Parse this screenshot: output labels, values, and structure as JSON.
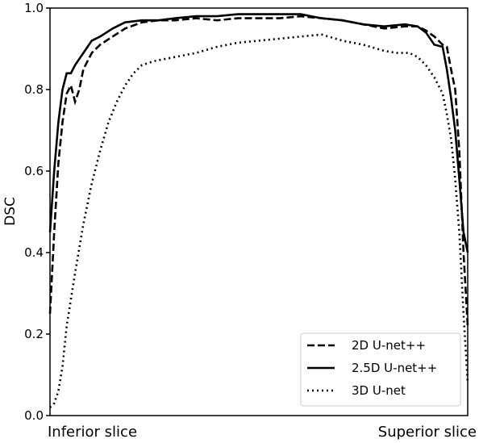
{
  "chart_data": {
    "type": "line",
    "title": "",
    "ylabel": "DSC",
    "xlabel": "",
    "x_end_labels": {
      "left": "Inferior slice",
      "right": "Superior slice"
    },
    "xlim": [
      0,
      100
    ],
    "ylim": [
      0,
      1.0
    ],
    "yticks": [
      0.0,
      0.2,
      0.4,
      0.6,
      0.8,
      1.0
    ],
    "ytick_labels": [
      "0.0",
      "0.2",
      "0.4",
      "0.6",
      "0.8",
      "1.0"
    ],
    "grid": false,
    "legend_position": "bottom-right",
    "series": [
      {
        "name": "2D U-net++",
        "style": "dashed",
        "color": "#000000",
        "x": [
          0,
          1,
          2,
          3,
          4,
          5,
          6,
          7,
          8,
          10,
          12,
          15,
          18,
          22,
          26,
          30,
          35,
          40,
          45,
          50,
          55,
          60,
          65,
          70,
          75,
          80,
          85,
          88,
          90,
          92,
          94,
          95,
          96,
          97,
          98,
          99,
          100
        ],
        "y": [
          0.25,
          0.45,
          0.62,
          0.72,
          0.79,
          0.81,
          0.77,
          0.8,
          0.85,
          0.89,
          0.91,
          0.93,
          0.95,
          0.965,
          0.97,
          0.97,
          0.975,
          0.97,
          0.975,
          0.975,
          0.975,
          0.98,
          0.975,
          0.97,
          0.96,
          0.95,
          0.955,
          0.955,
          0.945,
          0.93,
          0.91,
          0.905,
          0.85,
          0.8,
          0.65,
          0.4,
          0.22
        ]
      },
      {
        "name": "2.5D U-net++",
        "style": "solid",
        "color": "#000000",
        "x": [
          0,
          1,
          2,
          3,
          4,
          5,
          6,
          8,
          10,
          12,
          15,
          18,
          22,
          26,
          30,
          35,
          40,
          45,
          50,
          55,
          60,
          65,
          70,
          75,
          80,
          85,
          88,
          90,
          92,
          94,
          95,
          96,
          97,
          98,
          99,
          100
        ],
        "y": [
          0.45,
          0.6,
          0.72,
          0.8,
          0.84,
          0.84,
          0.86,
          0.89,
          0.92,
          0.93,
          0.95,
          0.965,
          0.97,
          0.97,
          0.975,
          0.98,
          0.98,
          0.985,
          0.985,
          0.985,
          0.985,
          0.975,
          0.97,
          0.96,
          0.955,
          0.96,
          0.955,
          0.94,
          0.91,
          0.905,
          0.85,
          0.78,
          0.7,
          0.58,
          0.45,
          0.4
        ]
      },
      {
        "name": "3D U-net",
        "style": "dotted",
        "color": "#000000",
        "x": [
          0,
          1,
          2,
          3,
          4,
          6,
          8,
          10,
          12,
          14,
          16,
          18,
          20,
          22,
          25,
          30,
          35,
          40,
          45,
          50,
          55,
          60,
          65,
          70,
          75,
          80,
          83,
          86,
          88,
          90,
          92,
          94,
          95,
          96,
          97,
          98,
          99,
          100
        ],
        "y": [
          0.02,
          0.03,
          0.06,
          0.12,
          0.22,
          0.35,
          0.47,
          0.57,
          0.65,
          0.72,
          0.77,
          0.81,
          0.84,
          0.86,
          0.87,
          0.88,
          0.89,
          0.905,
          0.915,
          0.92,
          0.925,
          0.93,
          0.935,
          0.92,
          0.91,
          0.895,
          0.89,
          0.89,
          0.88,
          0.86,
          0.83,
          0.79,
          0.74,
          0.68,
          0.58,
          0.45,
          0.25,
          0.08
        ]
      }
    ]
  }
}
